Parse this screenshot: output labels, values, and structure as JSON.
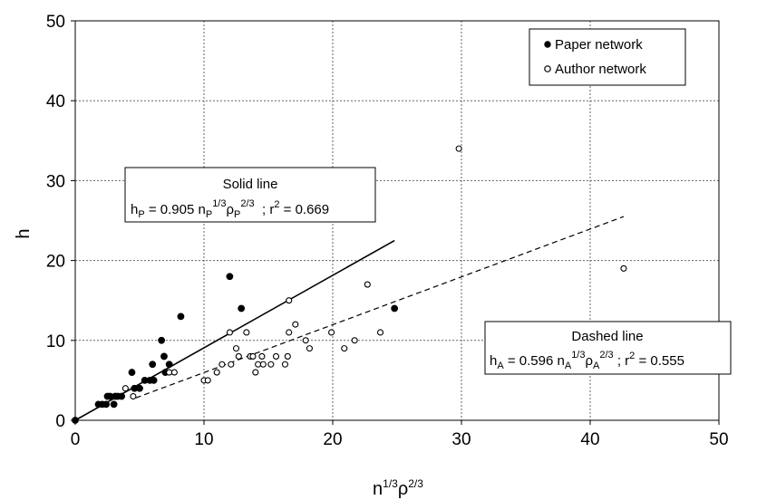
{
  "chart_data": {
    "type": "scatter",
    "xlabel": "n",
    "xlabel_sup": "1/3",
    "xlabel_rho": "ρ",
    "xlabel_rho_sup": "2/3",
    "ylabel": "h",
    "xlim": [
      0,
      50
    ],
    "ylim": [
      0,
      50
    ],
    "xticks": [
      "0",
      "10",
      "20",
      "30",
      "40",
      "50"
    ],
    "yticks": [
      "0",
      "10",
      "20",
      "30",
      "40",
      "50"
    ],
    "grid": true,
    "legend_position": "top-right",
    "series": [
      {
        "name": "Paper network",
        "marker": "filled-circle",
        "color": "#000000",
        "points": [
          [
            0,
            0
          ],
          [
            1.8,
            2
          ],
          [
            2.1,
            2
          ],
          [
            2.4,
            2
          ],
          [
            2.5,
            3
          ],
          [
            2.7,
            3
          ],
          [
            3.0,
            2
          ],
          [
            3.1,
            3
          ],
          [
            3.3,
            3
          ],
          [
            3.6,
            3
          ],
          [
            4.4,
            6
          ],
          [
            4.6,
            4
          ],
          [
            5.0,
            4
          ],
          [
            5.4,
            5
          ],
          [
            5.8,
            5
          ],
          [
            6.0,
            7
          ],
          [
            6.1,
            5
          ],
          [
            6.7,
            10
          ],
          [
            6.9,
            8
          ],
          [
            7.0,
            6
          ],
          [
            7.3,
            7
          ],
          [
            8.2,
            13
          ],
          [
            12.0,
            18
          ],
          [
            12.9,
            14
          ],
          [
            24.8,
            14
          ]
        ]
      },
      {
        "name": "Author network",
        "marker": "open-circle",
        "color": "#000000",
        "points": [
          [
            3.9,
            4
          ],
          [
            4.5,
            3
          ],
          [
            7.3,
            6
          ],
          [
            7.7,
            6
          ],
          [
            10.0,
            5
          ],
          [
            10.3,
            5
          ],
          [
            11.0,
            6
          ],
          [
            11.4,
            7
          ],
          [
            12.0,
            11
          ],
          [
            12.1,
            7
          ],
          [
            12.5,
            9
          ],
          [
            12.7,
            8
          ],
          [
            13.3,
            11
          ],
          [
            13.6,
            8
          ],
          [
            13.8,
            8
          ],
          [
            14.0,
            6
          ],
          [
            14.2,
            7
          ],
          [
            14.5,
            8
          ],
          [
            14.6,
            7
          ],
          [
            15.2,
            7
          ],
          [
            15.6,
            8
          ],
          [
            16.3,
            7
          ],
          [
            16.5,
            8
          ],
          [
            16.6,
            11
          ],
          [
            16.6,
            15
          ],
          [
            17.1,
            12
          ],
          [
            17.9,
            10
          ],
          [
            18.2,
            9
          ],
          [
            19.9,
            11
          ],
          [
            20.9,
            9
          ],
          [
            21.7,
            10
          ],
          [
            22.7,
            17
          ],
          [
            23.7,
            11
          ],
          [
            29.8,
            34
          ],
          [
            42.6,
            19
          ]
        ]
      }
    ],
    "fits": [
      {
        "style": "solid",
        "from": [
          0,
          0
        ],
        "to": [
          24.8,
          22.5
        ]
      },
      {
        "style": "dashed",
        "from": [
          4.7,
          2.8
        ],
        "to": [
          42.6,
          25.5
        ]
      }
    ],
    "annotations": {
      "solid": {
        "title": "Solid line",
        "h": "h",
        "h_sub": "P",
        "eq1": " = 0.905 n",
        "n_sub": "P",
        "n_sup": "1/3",
        "rho": "ρ",
        "rho_sub": "P",
        "rho_sup": "2/3",
        "r2_label": "  ; r",
        "r2_sup": "2",
        "r2_value": " = 0.669"
      },
      "dashed": {
        "title": "Dashed line",
        "h": "h",
        "h_sub": "A",
        "eq1": " = 0.596 n",
        "n_sub": "A",
        "n_sup": "1/3",
        "rho": "ρ",
        "rho_sub": "A",
        "rho_sup": "2/3",
        "r2_label": " ; r",
        "r2_sup": "2",
        "r2_value": " = 0.555"
      }
    }
  }
}
